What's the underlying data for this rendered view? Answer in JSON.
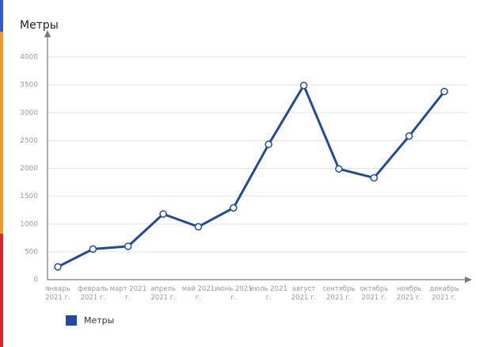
{
  "chart_data": {
    "type": "line",
    "y_label": "Метры",
    "categories": [
      "январь 2021 г.",
      "февраль 2021 г.",
      "март 2021 г.",
      "апрель 2021 г.",
      "май 2021 г.",
      "июнь 2021 г.",
      "июль 2021 г.",
      "август 2021 г.",
      "сентябрь 2021 г.",
      "октябрь 2021 г.",
      "ноябрь 2021 г.",
      "декабрь 2021 г."
    ],
    "series": [
      {
        "name": "Метры",
        "color": "#1f4aa0",
        "values": [
          230,
          550,
          600,
          1180,
          950,
          1290,
          2430,
          3490,
          1990,
          1830,
          2580,
          3380
        ]
      }
    ],
    "ylim": [
      0,
      4000
    ],
    "yticks": [
      0,
      500,
      1000,
      1500,
      2000,
      2500,
      3000,
      3500,
      4000
    ],
    "grid": true,
    "legend": "bottom-left"
  }
}
